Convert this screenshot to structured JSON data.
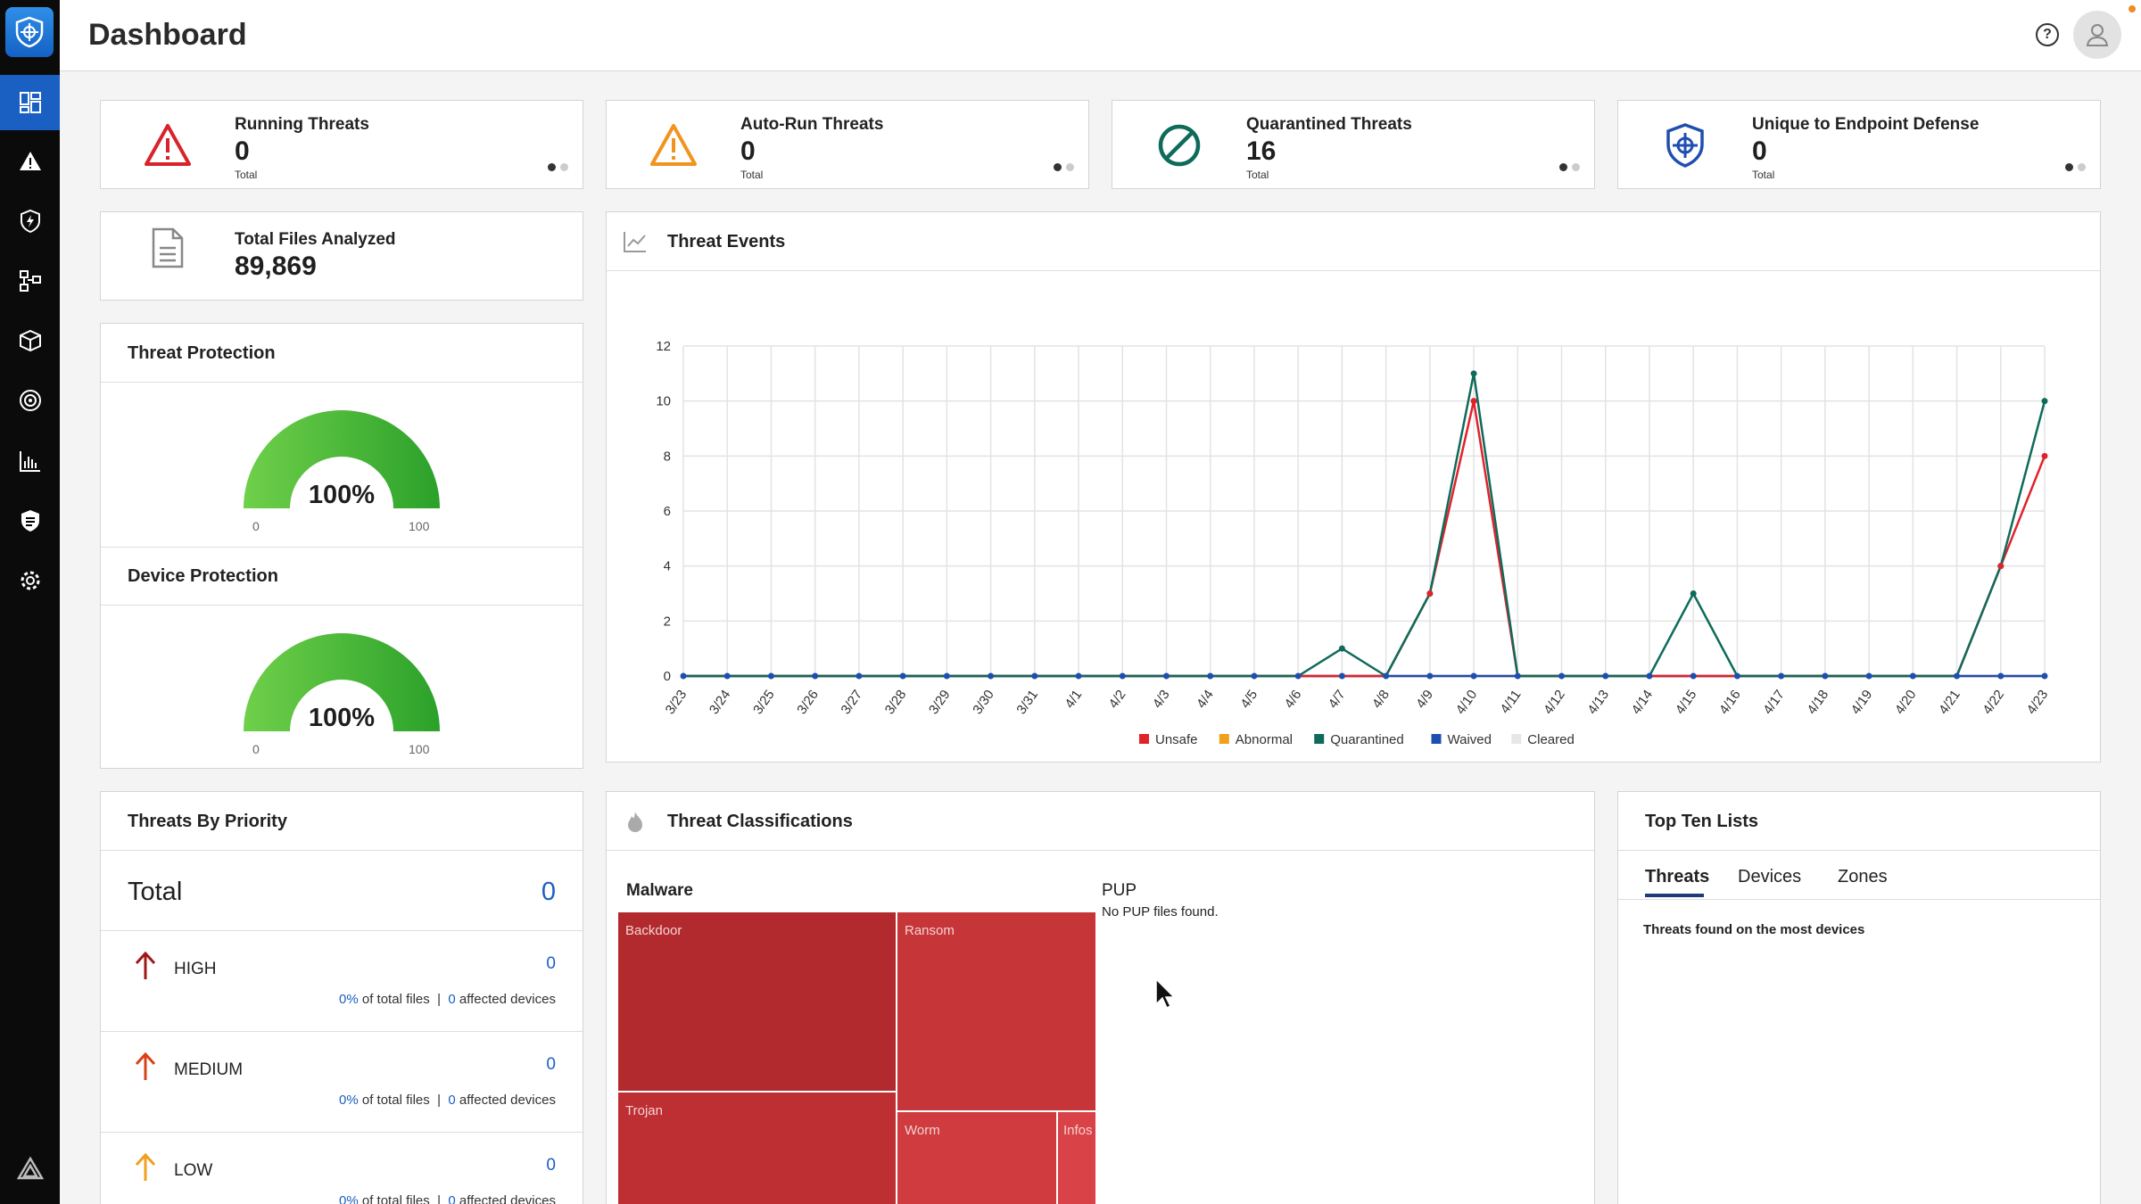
{
  "header": {
    "title": "Dashboard"
  },
  "icons": {
    "logo": "shield-logo-icon",
    "help": "help-icon",
    "user": "user-icon"
  },
  "sidebar": {
    "items": [
      {
        "name": "dashboard-icon",
        "active": true
      },
      {
        "name": "alerts-icon"
      },
      {
        "name": "shield-bolt-icon"
      },
      {
        "name": "devices-icon"
      },
      {
        "name": "package-icon"
      },
      {
        "name": "target-icon"
      },
      {
        "name": "reports-icon"
      },
      {
        "name": "policy-icon"
      },
      {
        "name": "settings-icon"
      }
    ]
  },
  "stats": [
    {
      "title": "Running Threats",
      "value": "0",
      "sub": "Total",
      "icon": "warning-red-icon"
    },
    {
      "title": "Auto-Run Threats",
      "value": "0",
      "sub": "Total",
      "icon": "warning-orange-icon"
    },
    {
      "title": "Quarantined Threats",
      "value": "16",
      "sub": "Total",
      "icon": "blocked-icon"
    },
    {
      "title": "Unique to Endpoint Defense",
      "value": "0",
      "sub": "Total",
      "icon": "shield-target-icon"
    }
  ],
  "files": {
    "title": "Total Files Analyzed",
    "value": "89,869",
    "icon": "document-icon"
  },
  "threat_protection": {
    "title": "Threat Protection",
    "value": "100%",
    "percent": 100,
    "min": "0",
    "max": "100"
  },
  "device_protection": {
    "title": "Device Protection",
    "value": "100%",
    "percent": 100,
    "min": "0",
    "max": "100"
  },
  "threat_events": {
    "title": "Threat Events",
    "icon": "line-chart-icon",
    "legend": [
      {
        "name": "Unsafe",
        "color": "#e0232b"
      },
      {
        "name": "Abnormal",
        "color": "#f0a01e"
      },
      {
        "name": "Quarantined",
        "color": "#0e6b5b"
      },
      {
        "name": "Waived",
        "color": "#1e4fb0"
      },
      {
        "name": "Cleared",
        "color": "#e6e6e6"
      }
    ]
  },
  "chart_data": {
    "type": "line",
    "x": [
      "3/23",
      "3/24",
      "3/25",
      "3/26",
      "3/27",
      "3/28",
      "3/29",
      "3/30",
      "3/31",
      "4/1",
      "4/2",
      "4/3",
      "4/4",
      "4/5",
      "4/6",
      "4/7",
      "4/8",
      "4/9",
      "4/10",
      "4/11",
      "4/12",
      "4/13",
      "4/14",
      "4/15",
      "4/16",
      "4/17",
      "4/18",
      "4/19",
      "4/20",
      "4/21",
      "4/22",
      "4/23"
    ],
    "yticks": [
      "0",
      "2",
      "4",
      "6",
      "8",
      "10",
      "12"
    ],
    "ylim": [
      0,
      12
    ],
    "grid": true,
    "legend_position": "bottom",
    "series": [
      {
        "name": "Unsafe",
        "color": "#e0232b",
        "values": [
          0,
          0,
          0,
          0,
          0,
          0,
          0,
          0,
          0,
          0,
          0,
          0,
          0,
          0,
          0,
          0,
          0,
          3,
          10,
          0,
          0,
          0,
          0,
          0,
          0,
          0,
          0,
          0,
          0,
          0,
          4,
          8
        ]
      },
      {
        "name": "Abnormal",
        "color": "#f0a01e",
        "values": [
          0,
          0,
          0,
          0,
          0,
          0,
          0,
          0,
          0,
          0,
          0,
          0,
          0,
          0,
          0,
          0,
          0,
          0,
          0,
          0,
          0,
          0,
          0,
          0,
          0,
          0,
          0,
          0,
          0,
          0,
          0,
          0
        ]
      },
      {
        "name": "Quarantined",
        "color": "#0e6b5b",
        "values": [
          0,
          0,
          0,
          0,
          0,
          0,
          0,
          0,
          0,
          0,
          0,
          0,
          0,
          0,
          0,
          1,
          0,
          3,
          11,
          0,
          0,
          0,
          0,
          3,
          0,
          0,
          0,
          0,
          0,
          0,
          4,
          10
        ]
      },
      {
        "name": "Waived",
        "color": "#1e4fb0",
        "values": [
          0,
          0,
          0,
          0,
          0,
          0,
          0,
          0,
          0,
          0,
          0,
          0,
          0,
          0,
          0,
          0,
          0,
          0,
          0,
          0,
          0,
          0,
          0,
          0,
          0,
          0,
          0,
          0,
          0,
          0,
          0,
          0
        ]
      },
      {
        "name": "Cleared",
        "color": "#e6e6e6",
        "values": [
          0,
          0,
          0,
          0,
          0,
          0,
          0,
          0,
          0,
          0,
          0,
          0,
          0,
          0,
          0,
          0,
          0,
          0,
          0,
          0,
          0,
          0,
          0,
          0,
          0,
          0,
          0,
          0,
          0,
          0,
          0,
          0
        ]
      }
    ]
  },
  "priority": {
    "title": "Threats By Priority",
    "total_label": "Total",
    "total_value": "0",
    "rows": [
      {
        "label": "HIGH",
        "value": "0",
        "pct": "0%",
        "pct_text": "of total files",
        "sep": "|",
        "devices": "0",
        "devices_text": "affected devices",
        "color": "#a01818"
      },
      {
        "label": "MEDIUM",
        "value": "0",
        "pct": "0%",
        "pct_text": "of total files",
        "sep": "|",
        "devices": "0",
        "devices_text": "affected devices",
        "color": "#d9401a"
      },
      {
        "label": "LOW",
        "value": "0",
        "pct": "0%",
        "pct_text": "of total files",
        "sep": "|",
        "devices": "0",
        "devices_text": "affected devices",
        "color": "#f0a01e"
      }
    ]
  },
  "classifications": {
    "title": "Threat Classifications",
    "icon": "fire-icon",
    "malware_label": "Malware",
    "pup_label": "PUP",
    "pup_note": "No PUP files found.",
    "tiles": [
      {
        "label": "Backdoor",
        "color": "#b22a2e"
      },
      {
        "label": "Ransom",
        "color": "#c63538"
      },
      {
        "label": "Trojan",
        "color": "#bd2f33"
      },
      {
        "label": "Worm",
        "color": "#cf3b3e"
      },
      {
        "label": "Infos",
        "color": "#d94246"
      }
    ]
  },
  "top_ten": {
    "title": "Top Ten Lists",
    "tabs": [
      "Threats",
      "Devices",
      "Zones"
    ],
    "description": "Threats found on the most devices"
  }
}
